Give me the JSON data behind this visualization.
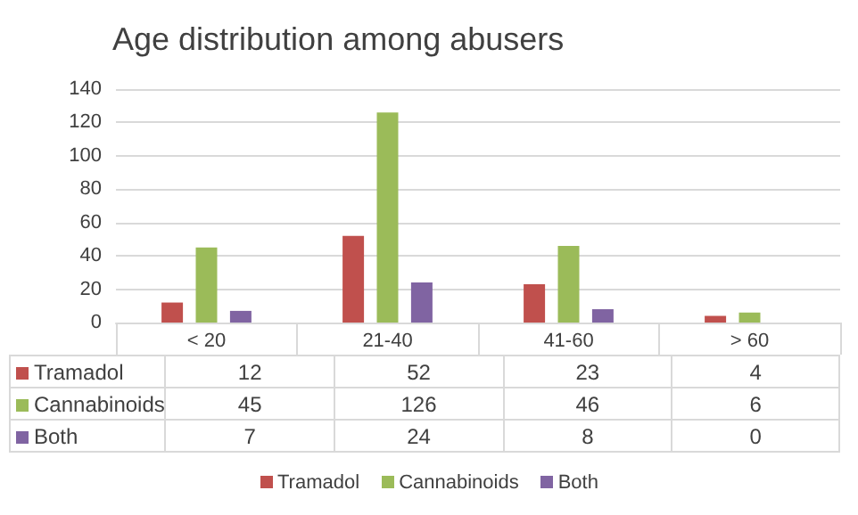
{
  "chart_data": {
    "type": "bar",
    "title": "Age distribution among abusers",
    "categories": [
      "< 20",
      "21-40",
      "41-60",
      "> 60"
    ],
    "series": [
      {
        "name": "Tramadol",
        "color": "#c0504d",
        "values": [
          12,
          52,
          23,
          4
        ]
      },
      {
        "name": "Cannabinoids",
        "color": "#9bbb59",
        "values": [
          45,
          126,
          46,
          6
        ]
      },
      {
        "name": "Both",
        "color": "#8064a2",
        "values": [
          7,
          24,
          8,
          0
        ]
      }
    ],
    "ylim": [
      0,
      140
    ],
    "yticks": [
      0,
      20,
      40,
      60,
      80,
      100,
      120,
      140
    ],
    "grid": "y",
    "legend": "bottom",
    "data_labels": true
  }
}
